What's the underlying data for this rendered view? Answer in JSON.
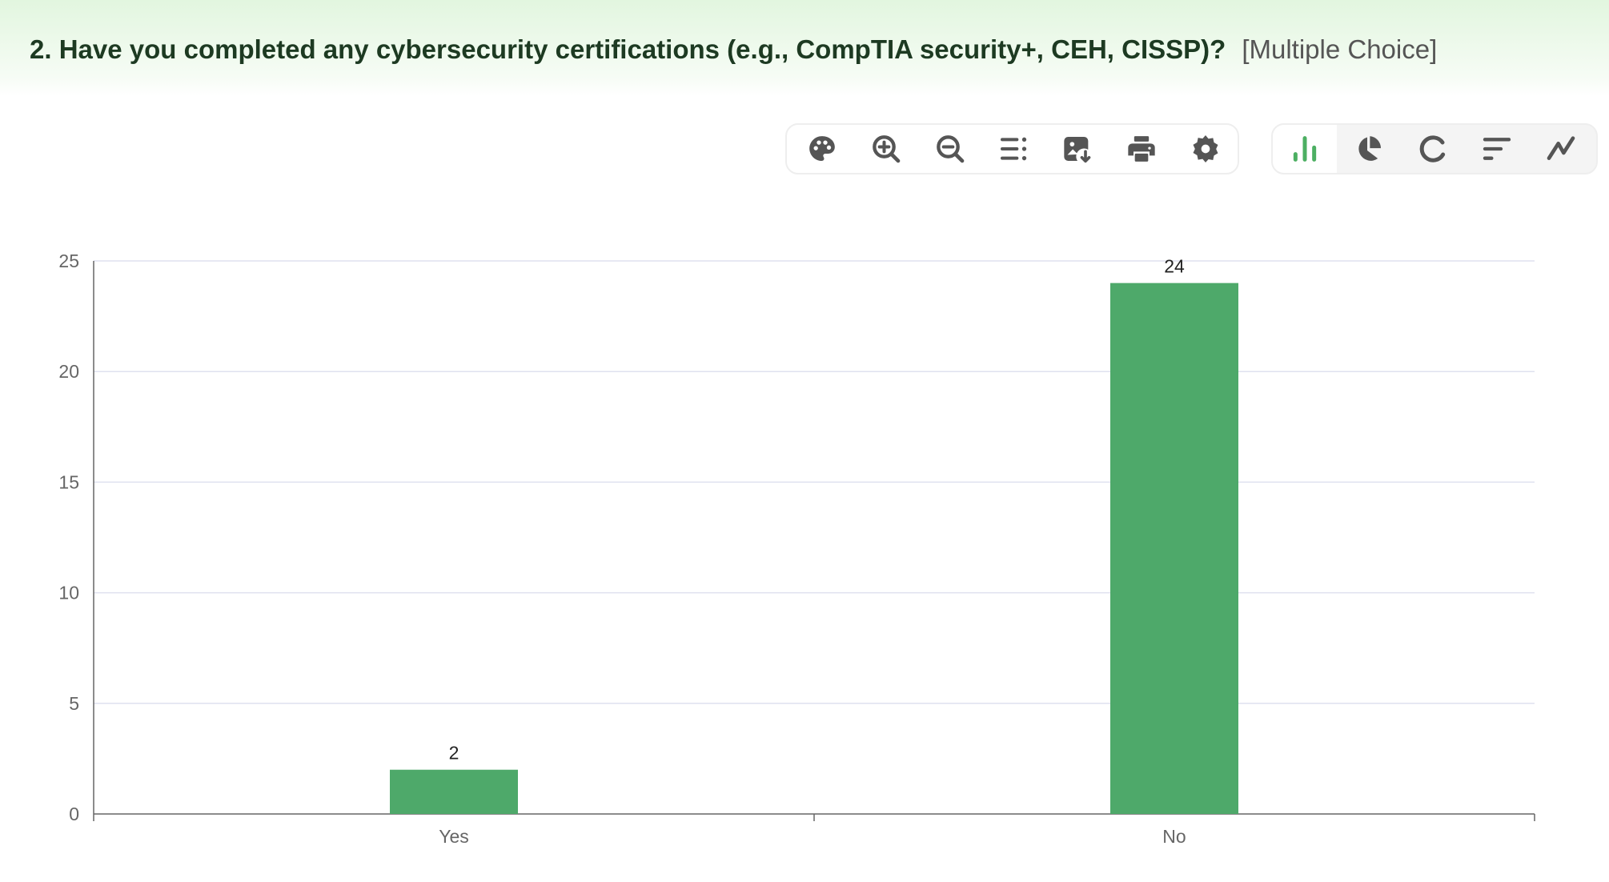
{
  "question": {
    "title": "2. Have you completed any cybersecurity certifications (e.g., CompTIA security+, CEH, CISSP)?",
    "type": "[Multiple Choice]"
  },
  "toolbar": {
    "tools": [
      "palette-icon",
      "zoom-in-icon",
      "zoom-out-icon",
      "list-icon",
      "save-image-icon",
      "print-icon",
      "settings-icon"
    ],
    "chart_types": [
      "bar-chart-icon",
      "pie-chart-icon",
      "ring-chart-icon",
      "sort-bar-icon",
      "line-chart-icon"
    ],
    "active_chart_type": "bar-chart-icon"
  },
  "colors": {
    "bar": "#4ea96a",
    "accent": "#4caf62",
    "icon": "#555555",
    "grid": "#dfe1ef",
    "axis": "#666666",
    "title": "#1d3a22"
  },
  "chart_data": {
    "type": "bar",
    "categories": [
      "Yes",
      "No"
    ],
    "values": [
      2,
      24
    ],
    "title": "",
    "xlabel": "",
    "ylabel": "",
    "ylim": [
      0,
      25
    ],
    "yticks": [
      0,
      5,
      10,
      15,
      20,
      25
    ],
    "grid": true,
    "show_data_labels": true
  }
}
